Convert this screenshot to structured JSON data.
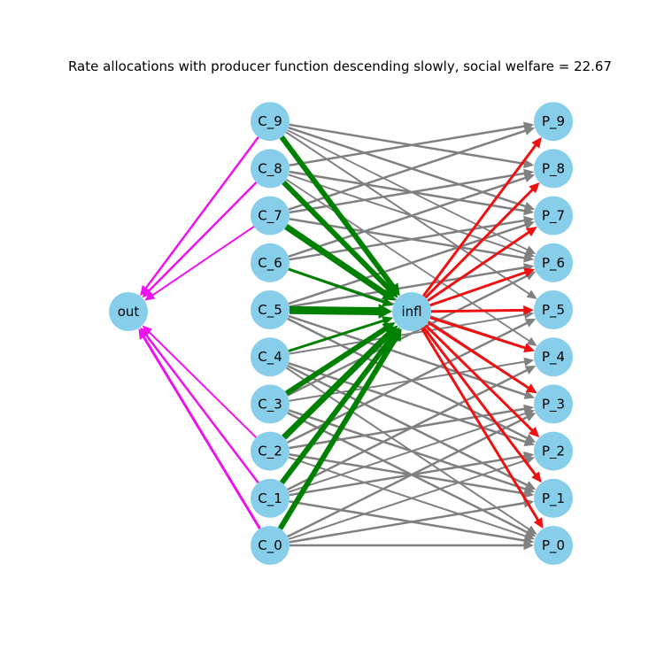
{
  "title": "Rate allocations with producer function descending slowly, social welfare = 22.67",
  "colors": {
    "node_fill": "#87ceeb",
    "edge_default": "#808080",
    "edge_consumer_to_infl": "#008000",
    "edge_infl_to_producer": "#ee1111",
    "edge_consumer_to_out": "#ee11ee"
  },
  "nodes": {
    "out": "out",
    "infl": "infl",
    "consumers": [
      "C_0",
      "C_1",
      "C_2",
      "C_3",
      "C_4",
      "C_5",
      "C_6",
      "C_7",
      "C_8",
      "C_9"
    ],
    "producers": [
      "P_0",
      "P_1",
      "P_2",
      "P_3",
      "P_4",
      "P_5",
      "P_6",
      "P_7",
      "P_8",
      "P_9"
    ]
  },
  "edges": {
    "consumer_to_infl": [
      {
        "source": "C_0",
        "weight": 6
      },
      {
        "source": "C_1",
        "weight": 6
      },
      {
        "source": "C_2",
        "weight": 7
      },
      {
        "source": "C_3",
        "weight": 6
      },
      {
        "source": "C_4",
        "weight": 3
      },
      {
        "source": "C_5",
        "weight": 9
      },
      {
        "source": "C_6",
        "weight": 3
      },
      {
        "source": "C_7",
        "weight": 7
      },
      {
        "source": "C_8",
        "weight": 6
      },
      {
        "source": "C_9",
        "weight": 6
      }
    ],
    "consumer_to_out": [
      {
        "source": "C_0",
        "weight": 3
      },
      {
        "source": "C_1",
        "weight": 2.5
      },
      {
        "source": "C_2",
        "weight": 2
      },
      {
        "source": "C_7",
        "weight": 2
      },
      {
        "source": "C_8",
        "weight": 2.5
      },
      {
        "source": "C_9",
        "weight": 2.5
      }
    ],
    "infl_to_producer": [
      {
        "target": "P_0",
        "weight": 3
      },
      {
        "target": "P_1",
        "weight": 3
      },
      {
        "target": "P_2",
        "weight": 3
      },
      {
        "target": "P_3",
        "weight": 3
      },
      {
        "target": "P_4",
        "weight": 3
      },
      {
        "target": "P_5",
        "weight": 3
      },
      {
        "target": "P_6",
        "weight": 3
      },
      {
        "target": "P_7",
        "weight": 3
      },
      {
        "target": "P_8",
        "weight": 3
      },
      {
        "target": "P_9",
        "weight": 3
      }
    ],
    "consumer_to_producer": [
      {
        "source": "C_9",
        "target": "P_8",
        "weight": 2.5
      },
      {
        "source": "C_9",
        "target": "P_7",
        "weight": 2.5
      },
      {
        "source": "C_9",
        "target": "P_6",
        "weight": 1.8
      },
      {
        "source": "C_9",
        "target": "P_5",
        "weight": 2
      },
      {
        "source": "C_8",
        "target": "P_9",
        "weight": 2.5
      },
      {
        "source": "C_8",
        "target": "P_7",
        "weight": 2.5
      },
      {
        "source": "C_8",
        "target": "P_6",
        "weight": 2
      },
      {
        "source": "C_8",
        "target": "P_4",
        "weight": 1.8
      },
      {
        "source": "C_7",
        "target": "P_9",
        "weight": 2.5
      },
      {
        "source": "C_7",
        "target": "P_8",
        "weight": 2.5
      },
      {
        "source": "C_7",
        "target": "P_6",
        "weight": 2.5
      },
      {
        "source": "C_7",
        "target": "P_3",
        "weight": 2
      },
      {
        "source": "C_6",
        "target": "P_8",
        "weight": 2.5
      },
      {
        "source": "C_6",
        "target": "P_7",
        "weight": 2.5
      },
      {
        "source": "C_6",
        "target": "P_4",
        "weight": 2
      },
      {
        "source": "C_5",
        "target": "P_7",
        "weight": 2.5
      },
      {
        "source": "C_5",
        "target": "P_6",
        "weight": 2.5
      },
      {
        "source": "C_5",
        "target": "P_3",
        "weight": 2.5
      },
      {
        "source": "C_5",
        "target": "P_2",
        "weight": 2.5
      },
      {
        "source": "C_4",
        "target": "P_5",
        "weight": 2
      },
      {
        "source": "C_4",
        "target": "P_2",
        "weight": 2.5
      },
      {
        "source": "C_4",
        "target": "P_1",
        "weight": 2.5
      },
      {
        "source": "C_4",
        "target": "P_0",
        "weight": 2
      },
      {
        "source": "C_3",
        "target": "P_6",
        "weight": 2.5
      },
      {
        "source": "C_3",
        "target": "P_4",
        "weight": 2
      },
      {
        "source": "C_3",
        "target": "P_1",
        "weight": 2.5
      },
      {
        "source": "C_3",
        "target": "P_0",
        "weight": 2.5
      },
      {
        "source": "C_2",
        "target": "P_5",
        "weight": 2.5
      },
      {
        "source": "C_2",
        "target": "P_3",
        "weight": 2.5
      },
      {
        "source": "C_2",
        "target": "P_1",
        "weight": 2.5
      },
      {
        "source": "C_2",
        "target": "P_0",
        "weight": 2
      },
      {
        "source": "C_1",
        "target": "P_4",
        "weight": 2.5
      },
      {
        "source": "C_1",
        "target": "P_3",
        "weight": 2
      },
      {
        "source": "C_1",
        "target": "P_2",
        "weight": 2.5
      },
      {
        "source": "C_1",
        "target": "P_0",
        "weight": 2.5
      },
      {
        "source": "C_0",
        "target": "P_3",
        "weight": 2.5
      },
      {
        "source": "C_0",
        "target": "P_2",
        "weight": 2
      },
      {
        "source": "C_0",
        "target": "P_1",
        "weight": 2.5
      },
      {
        "source": "C_0",
        "target": "P_0",
        "weight": 2.5
      }
    ]
  }
}
